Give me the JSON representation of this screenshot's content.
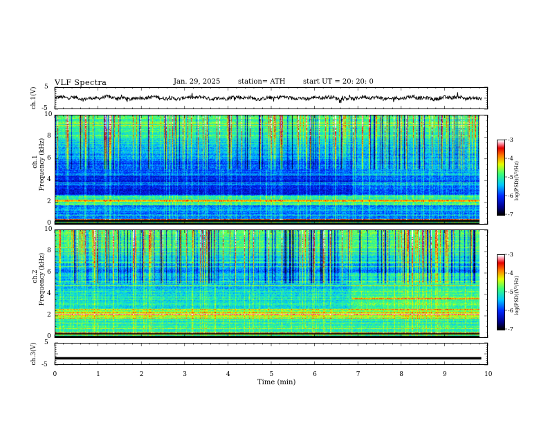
{
  "header": {
    "title": "VLF  Spectra",
    "date": "Jan. 29, 2025",
    "station": "station= ATH",
    "start": "start  UT  =    20: 20: 0"
  },
  "chart_data": [
    {
      "type": "line",
      "panel": "ch1-waveform",
      "ylabel": "ch.1(V)",
      "ylim": [
        -5,
        5
      ],
      "yticks": [
        "5",
        "-5"
      ],
      "xlim": [
        0,
        10
      ],
      "x_end": 9.85,
      "level": 0.1,
      "grid": false
    },
    {
      "type": "heatmap",
      "panel": "ch1-spectrogram",
      "ylabel": "ch.1\nFrequency  (kHz)",
      "ylim": [
        0,
        10
      ],
      "yticks": [
        "0",
        "2",
        "4",
        "6",
        "8",
        "10"
      ],
      "xlim": [
        0,
        10
      ],
      "x_end": 9.85,
      "colorbar": {
        "label": "log(PSD)(V²/Hz)",
        "range": [
          -7,
          -3
        ],
        "ticks": [
          "-3",
          "-4",
          "-5",
          "-6",
          "-7"
        ]
      }
    },
    {
      "type": "heatmap",
      "panel": "ch2-spectrogram",
      "ylabel": "ch.2\nFrequency  (kHz)",
      "ylim": [
        0,
        10
      ],
      "yticks": [
        "0",
        "2",
        "4",
        "6",
        "8",
        "10"
      ],
      "xlim": [
        0,
        10
      ],
      "x_end": 9.85,
      "colorbar": {
        "label": "log(PSD)(V²/Hz)",
        "range": [
          -7,
          -3
        ],
        "ticks": [
          "-3",
          "-4",
          "-5",
          "-6",
          "-7"
        ]
      }
    },
    {
      "type": "line",
      "panel": "ch3-waveform",
      "ylabel": "ch.3(V)",
      "ylim": [
        -5,
        5
      ],
      "yticks": [
        "5",
        "-5"
      ],
      "xlim": [
        0,
        10
      ],
      "x_end": 9.85,
      "level": -2,
      "grid": false
    }
  ],
  "xaxis": {
    "label": "Time  (min)",
    "ticks": [
      "0",
      "1",
      "2",
      "3",
      "4",
      "5",
      "6",
      "7",
      "8",
      "9",
      "10"
    ]
  }
}
